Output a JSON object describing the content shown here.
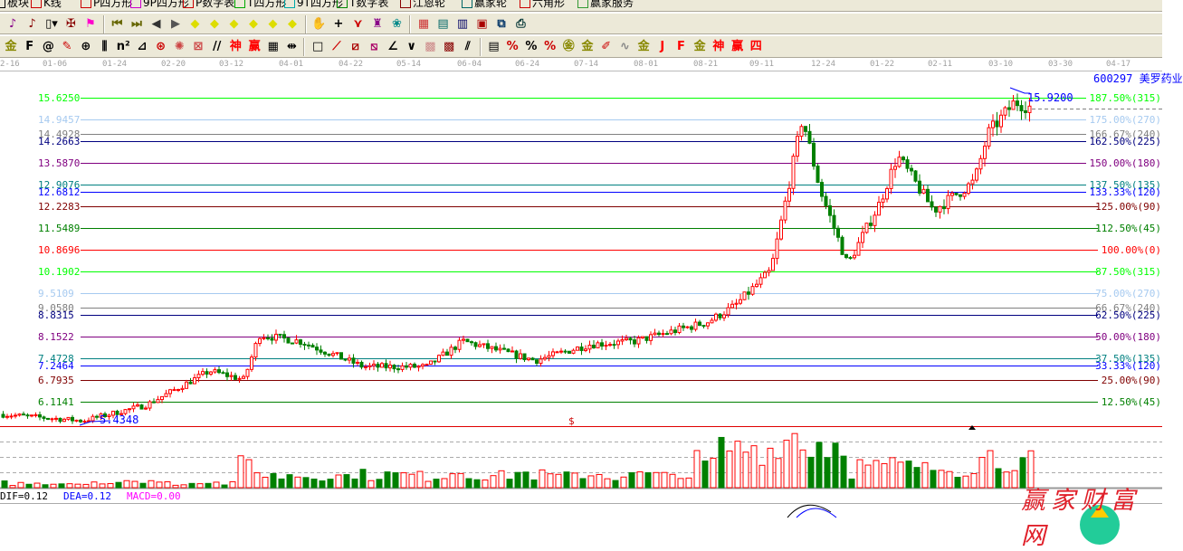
{
  "menu": [
    {
      "label": "板块",
      "icon": "blocks-icon",
      "color": "#000"
    },
    {
      "label": "K线",
      "icon": "kline-icon",
      "color": "#c00"
    },
    {
      "label": "P四方形",
      "icon": "p-square-icon",
      "color": "#c00"
    },
    {
      "label": "9P四方形",
      "icon": "9p-square-icon",
      "color": "#c0c"
    },
    {
      "label": "P数字表",
      "icon": "p-number-table-icon",
      "color": "#c00"
    },
    {
      "label": "T四方形",
      "icon": "t-square-icon",
      "color": "#0a0"
    },
    {
      "label": "9T四方形",
      "icon": "9t-square-icon",
      "color": "#0aa"
    },
    {
      "label": "T数字表",
      "icon": "t-number-table-icon",
      "color": "#080"
    },
    {
      "label": "江恩轮",
      "icon": "gann-wheel-icon",
      "color": "#800"
    },
    {
      "label": "赢家轮",
      "icon": "winner-wheel-icon",
      "color": "#066"
    },
    {
      "label": "六角形",
      "icon": "hexagon-icon",
      "color": "#c00"
    },
    {
      "label": "赢家服务",
      "icon": "dollar-icon",
      "color": "#393"
    }
  ],
  "toolbar1": [
    {
      "name": "period-3-icon",
      "g": "♪",
      "c": "#808"
    },
    {
      "name": "period-9-icon",
      "g": "♪",
      "c": "#800"
    },
    {
      "name": "candle-type-icon",
      "g": "▯▾",
      "c": "#000"
    },
    {
      "name": "pattern-icon",
      "g": "✠",
      "c": "#800"
    },
    {
      "name": "flag-icon",
      "g": "⚑",
      "c": "#f0c"
    },
    {
      "name": "first-icon",
      "g": "⏮",
      "c": "#660"
    },
    {
      "name": "last-icon",
      "g": "⏭",
      "c": "#660"
    },
    {
      "name": "left-arrow-icon",
      "g": "◀",
      "c": "#333"
    },
    {
      "name": "right-arrow-icon",
      "g": "▶",
      "c": "#555"
    },
    {
      "name": "diamond-left-icon",
      "g": "◆",
      "c": "#dd0"
    },
    {
      "name": "diamond-right-icon",
      "g": "◆",
      "c": "#dd0"
    },
    {
      "name": "diamond-hexpand-icon",
      "g": "◆",
      "c": "#dd0"
    },
    {
      "name": "diamond-compress-icon",
      "g": "◆",
      "c": "#dd0"
    },
    {
      "name": "diamond-expand-icon",
      "g": "◆",
      "c": "#dd0"
    },
    {
      "name": "diamond-vexpand-icon",
      "g": "◆",
      "c": "#dd0"
    },
    {
      "name": "hand-icon",
      "g": "✋",
      "c": "#000"
    },
    {
      "name": "crosshair-icon",
      "g": "+",
      "c": "#000"
    },
    {
      "name": "zigzag-icon",
      "g": "⋎",
      "c": "#c00"
    },
    {
      "name": "stamp-icon",
      "g": "♜",
      "c": "#808"
    },
    {
      "name": "brain-icon",
      "g": "❀",
      "c": "#088"
    },
    {
      "name": "calendar-icon",
      "g": "▦",
      "c": "#c33"
    },
    {
      "name": "calculator-icon",
      "g": "▤",
      "c": "#066"
    },
    {
      "name": "notepad-icon",
      "g": "▥",
      "c": "#006"
    },
    {
      "name": "save-icon",
      "g": "▣",
      "c": "#a00"
    },
    {
      "name": "network-icon",
      "g": "⧉",
      "c": "#036"
    },
    {
      "name": "printer-icon",
      "g": "⎙",
      "c": "#033"
    }
  ],
  "toolbar2": [
    {
      "name": "gold-ruler-icon",
      "g": "金",
      "c": "#880"
    },
    {
      "name": "f-ruler-icon",
      "g": "F",
      "c": "#000"
    },
    {
      "name": "spiral-icon",
      "g": "@",
      "c": "#000"
    },
    {
      "name": "pen-icon",
      "g": "✎",
      "c": "#c00"
    },
    {
      "name": "circle-grid-icon",
      "g": "⊕",
      "c": "#000"
    },
    {
      "name": "vertical-lines-icon",
      "g": "⫼",
      "c": "#000"
    },
    {
      "name": "n2-lines-icon",
      "g": "n²",
      "c": "#000"
    },
    {
      "name": "angle-icon",
      "g": "⊿",
      "c": "#000"
    },
    {
      "name": "target-icon",
      "g": "⊛",
      "c": "#c00"
    },
    {
      "name": "web-icon",
      "g": "✺",
      "c": "#c44"
    },
    {
      "name": "square-web-icon",
      "g": "⊠",
      "c": "#c44"
    },
    {
      "name": "slash-lines-icon",
      "g": "//",
      "c": "#000"
    },
    {
      "name": "shen-icon",
      "g": "神",
      "c": "#f00"
    },
    {
      "name": "ying-icon",
      "g": "赢",
      "c": "#f00"
    },
    {
      "name": "grid-ruler-icon",
      "g": "▦",
      "c": "#000"
    },
    {
      "name": "width-icon",
      "g": "⇹",
      "c": "#000"
    },
    {
      "name": "box-icon",
      "g": "□",
      "c": "#000"
    },
    {
      "name": "fan-icon",
      "g": "⟋",
      "c": "#c00"
    },
    {
      "name": "square-fan-icon",
      "g": "⧄",
      "c": "#a00"
    },
    {
      "name": "square-fan2-icon",
      "g": "⧅",
      "c": "#a06"
    },
    {
      "name": "angle-fan-icon",
      "g": "∠",
      "c": "#000"
    },
    {
      "name": "v-icon",
      "g": "∨",
      "c": "#000"
    },
    {
      "name": "grid-icon",
      "g": "▩",
      "c": "#c88"
    },
    {
      "name": "grid2-icon",
      "g": "▩",
      "c": "#800"
    },
    {
      "name": "parallel-icon",
      "g": "⫽",
      "c": "#000"
    },
    {
      "name": "table-icon",
      "g": "▤",
      "c": "#000"
    },
    {
      "name": "percent-fan-icon",
      "g": "%",
      "c": "#c00"
    },
    {
      "name": "percent-icon",
      "g": "%",
      "c": "#000"
    },
    {
      "name": "percent-lines-icon",
      "g": "%",
      "c": "#c00"
    },
    {
      "name": "gold-circle-icon",
      "g": "㊎",
      "c": "#880"
    },
    {
      "name": "gold-lines-icon",
      "g": "金",
      "c": "#880"
    },
    {
      "name": "pencil-ruler-icon",
      "g": "✐",
      "c": "#c00"
    },
    {
      "name": "sine-icon",
      "g": "∿",
      "c": "#888"
    },
    {
      "name": "gold-box-icon",
      "g": "金",
      "c": "#880"
    },
    {
      "name": "j-fan-icon",
      "g": "J",
      "c": "#f00"
    },
    {
      "name": "f-fan-icon",
      "g": "F",
      "c": "#f00"
    },
    {
      "name": "gold-fan-icon",
      "g": "金",
      "c": "#880"
    },
    {
      "name": "shen-fan-icon",
      "g": "神",
      "c": "#f00"
    },
    {
      "name": "ying-fan-icon",
      "g": "赢",
      "c": "#f00"
    },
    {
      "name": "si-fan-icon",
      "g": "四",
      "c": "#f00"
    }
  ],
  "dates": [
    "2-16",
    "01-06",
    "01-24",
    "02-20",
    "03-12",
    "04-01",
    "04-22",
    "05-14",
    "06-04",
    "06-24",
    "07-14",
    "08-01",
    "08-21",
    "09-11",
    "12-24",
    "01-22",
    "02-11",
    "03-10",
    "03-30",
    "04-17"
  ],
  "stock": {
    "code": "600297",
    "name": "美罗药业",
    "code_name": "600297 美罗药业",
    "high_label": "15.9200",
    "low_label": "5.4348"
  },
  "levels": [
    {
      "price": "15.6250",
      "pct": "187.50%(315)",
      "color": "#00ff00"
    },
    {
      "price": "14.9457",
      "pct": "175.00%(270)",
      "color": "#a6caf0"
    },
    {
      "price": "14.4928",
      "pct": "166.67%(240)",
      "color": "#808080"
    },
    {
      "price": "14.2663",
      "pct": "162.50%(225)",
      "color": "#000080"
    },
    {
      "price": "13.5870",
      "pct": "150.00%(180)",
      "color": "#800080"
    },
    {
      "price": "12.9076",
      "pct": "137.50%(135)",
      "color": "#008080"
    },
    {
      "price": "12.6812",
      "pct": "133.33%(120)",
      "color": "#0000ff"
    },
    {
      "price": "12.2283",
      "pct": "125.00%(90)",
      "color": "#800000"
    },
    {
      "price": "11.5489",
      "pct": "112.50%(45)",
      "color": "#008000"
    },
    {
      "price": "10.8696",
      "pct": "100.00%(0)",
      "color": "#ff0000"
    },
    {
      "price": "10.1902",
      "pct": "87.50%(315)",
      "color": "#00ff00"
    },
    {
      "price": "9.5109",
      "pct": "75.00%(270)",
      "color": "#a6caf0"
    },
    {
      "price": "9.0580",
      "pct": "66.67%(240)",
      "color": "#808080"
    },
    {
      "price": "8.8315",
      "pct": "62.50%(225)",
      "color": "#000080"
    },
    {
      "price": "8.1522",
      "pct": "50.00%(180)",
      "color": "#800080"
    },
    {
      "price": "7.4728",
      "pct": "37.50%(135)",
      "color": "#008080"
    },
    {
      "price": "7.2464",
      "pct": "33.33%(120)",
      "color": "#0000ff"
    },
    {
      "price": "6.7935",
      "pct": "25.00%(90)",
      "color": "#800000"
    },
    {
      "price": "6.1141",
      "pct": "12.50%(45)",
      "color": "#008000"
    }
  ],
  "macd": {
    "dif": "DIF=0.12",
    "dea": "DEA=0.12",
    "macd": "MACD=0.00"
  },
  "marker": "$",
  "watermark": "赢家财富网",
  "colors": {
    "up": "#ff0000",
    "down": "#008000",
    "bg": "#ffffff",
    "toolbar": "#ece9d8"
  }
}
